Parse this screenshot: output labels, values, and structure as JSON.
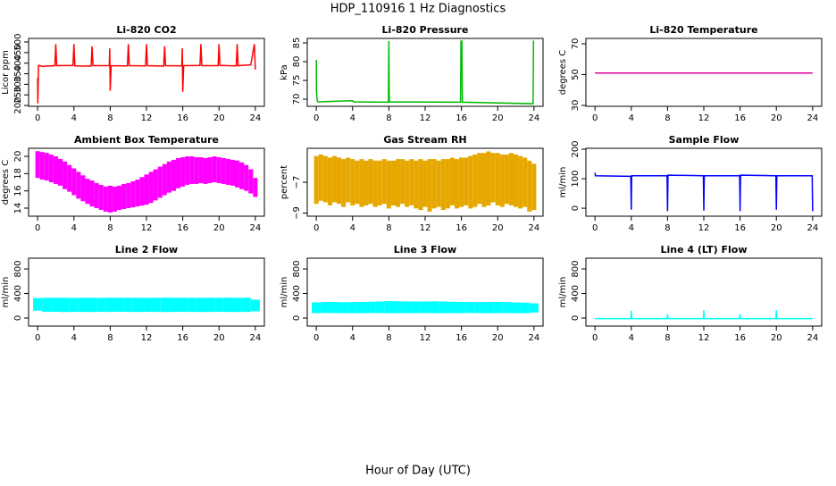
{
  "figure": {
    "title": "HDP_110916  1 Hz Diagnostics",
    "xlabel": "Hour of Day (UTC)"
  },
  "chart_data": [
    {
      "type": "line",
      "title": "Li-820 CO2",
      "ylabel": "Licor ppm",
      "x": [
        0,
        0.02,
        0.1,
        0.5,
        1.9,
        2,
        2.1,
        3.9,
        4,
        4.1,
        5.9,
        6,
        6.1,
        7.9,
        7.95,
        8,
        8.1,
        9.9,
        10,
        10.1,
        11.9,
        12,
        12.1,
        13.9,
        14,
        14.1,
        15.9,
        15.95,
        16,
        16.1,
        17.9,
        18,
        18.1,
        19.9,
        20,
        20.1,
        21.9,
        22,
        22.1,
        23.5,
        23.9,
        24
      ],
      "series": [
        {
          "color": "#ff0000",
          "values": [
            330,
            210,
            390,
            385,
            388,
            490,
            388,
            389,
            490,
            387,
            386,
            480,
            388,
            388,
            470,
            270,
            388,
            387,
            490,
            388,
            387,
            490,
            388,
            386,
            480,
            388,
            387,
            470,
            265,
            388,
            389,
            490,
            388,
            388,
            490,
            389,
            387,
            490,
            388,
            392,
            490,
            370
          ]
        }
      ],
      "xlim": [
        -1,
        25
      ],
      "xticks": [
        0,
        4,
        8,
        12,
        16,
        20,
        24
      ],
      "ylim": [
        196,
        517
      ],
      "yticks": [
        200,
        250,
        300,
        350,
        400,
        450,
        500
      ]
    },
    {
      "type": "line",
      "title": "Li-820 Pressure",
      "ylabel": "kPa",
      "x": [
        0,
        0.02,
        0.1,
        0.2,
        4,
        4.1,
        7.95,
        8,
        8.05,
        15.9,
        15.95,
        16,
        16.05,
        16.1,
        23.9,
        23.95,
        24
      ],
      "series": [
        {
          "color": "#00bb00",
          "values": [
            80.5,
            72,
            69.5,
            69.3,
            69.6,
            69.3,
            69.2,
            85.5,
            69.3,
            69.2,
            85.5,
            85.5,
            85.5,
            69.2,
            68.8,
            85.5,
            85.5
          ]
        }
      ],
      "xlim": [
        -1,
        25
      ],
      "xticks": [
        0,
        4,
        8,
        12,
        16,
        20,
        24
      ],
      "ylim": [
        68.1,
        86.2
      ],
      "yticks": [
        70,
        75,
        80,
        85
      ]
    },
    {
      "type": "line",
      "title": "Li-820 Temperature",
      "ylabel": "degrees C",
      "x": [
        0,
        24
      ],
      "series": [
        {
          "color": "#dd0099",
          "values": [
            51,
            51
          ]
        }
      ],
      "xlim": [
        -1,
        25
      ],
      "xticks": [
        0,
        4,
        8,
        12,
        16,
        20,
        24
      ],
      "ylim": [
        29.4,
        73.5
      ],
      "yticks": [
        30,
        50,
        70
      ]
    },
    {
      "type": "band",
      "title": "Ambient Box Temperature",
      "ylabel": "degrees C",
      "x": [
        0,
        0.5,
        1,
        1.5,
        2,
        2.5,
        3,
        3.5,
        4,
        4.5,
        5,
        5.5,
        6,
        6.5,
        7,
        7.5,
        8,
        8.5,
        9,
        9.5,
        10,
        10.5,
        11,
        11.5,
        12,
        12.5,
        13,
        13.5,
        14,
        14.5,
        15,
        15.5,
        16,
        16.5,
        17,
        17.5,
        18,
        18.5,
        19,
        19.5,
        20,
        20.5,
        21,
        21.5,
        22,
        22.5,
        23,
        23.5,
        24
      ],
      "series": [
        {
          "color": "#ff00ff",
          "upper": [
            20.6,
            20.5,
            20.4,
            20.2,
            20.0,
            19.7,
            19.4,
            19.0,
            18.6,
            18.2,
            17.8,
            17.4,
            17.2,
            16.9,
            16.7,
            16.5,
            16.6,
            16.5,
            16.6,
            16.8,
            16.9,
            17.1,
            17.3,
            17.6,
            17.9,
            18.2,
            18.5,
            18.8,
            19.1,
            19.4,
            19.6,
            19.8,
            19.9,
            20.0,
            20.0,
            19.9,
            19.9,
            19.8,
            19.9,
            20.0,
            19.9,
            19.8,
            19.7,
            19.6,
            19.5,
            19.3,
            19.0,
            18.5,
            17.5
          ],
          "lower": [
            17.5,
            17.3,
            17.2,
            17.0,
            16.8,
            16.6,
            16.2,
            15.9,
            15.5,
            15.1,
            14.8,
            14.5,
            14.2,
            14.0,
            13.8,
            13.6,
            13.5,
            13.6,
            13.8,
            13.9,
            14.0,
            14.1,
            14.2,
            14.3,
            14.4,
            14.6,
            14.9,
            15.2,
            15.5,
            15.8,
            16.0,
            16.3,
            16.5,
            16.7,
            16.8,
            16.8,
            16.9,
            16.8,
            16.9,
            17.0,
            16.9,
            16.8,
            16.7,
            16.6,
            16.4,
            16.2,
            16.0,
            15.7,
            15.3
          ]
        }
      ],
      "xlim": [
        -1,
        25
      ],
      "xticks": [
        0,
        4,
        8,
        12,
        16,
        20,
        24
      ],
      "ylim": [
        13.07,
        20.93
      ],
      "yticks": [
        14,
        16,
        18,
        20
      ]
    },
    {
      "type": "band",
      "title": "Gas Stream RH",
      "ylabel": "percent",
      "x": [
        0,
        0.5,
        1,
        1.5,
        2,
        2.5,
        3,
        3.5,
        4,
        4.5,
        5,
        5.5,
        6,
        6.5,
        7,
        7.5,
        8,
        8.5,
        9,
        9.5,
        10,
        10.5,
        11,
        11.5,
        12,
        12.5,
        13,
        13.5,
        14,
        14.5,
        15,
        15.5,
        16,
        16.5,
        17,
        17.5,
        18,
        18.5,
        19,
        19.5,
        20,
        20.5,
        21,
        21.5,
        22,
        22.5,
        23,
        23.5,
        24
      ],
      "series": [
        {
          "color": "#e6a800",
          "upper": [
            -5.3,
            -5.2,
            -5.3,
            -5.4,
            -5.3,
            -5.4,
            -5.5,
            -5.4,
            -5.5,
            -5.6,
            -5.5,
            -5.6,
            -5.5,
            -5.6,
            -5.6,
            -5.5,
            -5.6,
            -5.6,
            -5.5,
            -5.5,
            -5.6,
            -5.5,
            -5.6,
            -5.5,
            -5.6,
            -5.5,
            -5.5,
            -5.6,
            -5.5,
            -5.5,
            -5.4,
            -5.5,
            -5.4,
            -5.4,
            -5.3,
            -5.2,
            -5.1,
            -5.1,
            -5.0,
            -5.1,
            -5.1,
            -5.2,
            -5.2,
            -5.1,
            -5.2,
            -5.3,
            -5.4,
            -5.6,
            -5.8
          ],
          "lower": [
            -8.4,
            -8.2,
            -8.3,
            -8.5,
            -8.3,
            -8.4,
            -8.6,
            -8.3,
            -8.5,
            -8.4,
            -8.6,
            -8.5,
            -8.4,
            -8.6,
            -8.5,
            -8.4,
            -8.7,
            -8.5,
            -8.6,
            -8.4,
            -8.6,
            -8.5,
            -8.7,
            -8.8,
            -8.6,
            -8.9,
            -8.7,
            -8.6,
            -8.8,
            -8.7,
            -8.5,
            -8.7,
            -8.6,
            -8.5,
            -8.7,
            -8.6,
            -8.4,
            -8.6,
            -8.5,
            -8.3,
            -8.5,
            -8.6,
            -8.4,
            -8.5,
            -8.6,
            -8.7,
            -8.6,
            -8.9,
            -8.8
          ]
        }
      ],
      "xlim": [
        -1,
        25
      ],
      "xticks": [
        0,
        4,
        8,
        12,
        16,
        20,
        24
      ],
      "ylim": [
        -9.2,
        -4.8
      ],
      "yticks": [
        {
          "value": -9,
          "label": "−9"
        },
        {
          "value": -7,
          "label": "−7"
        }
      ]
    },
    {
      "type": "line",
      "title": "Sample Flow",
      "ylabel": "ml/min",
      "x": [
        0,
        0.05,
        3.95,
        4,
        4.05,
        7.95,
        8,
        8.05,
        11.95,
        12,
        12.05,
        15.95,
        16,
        16.05,
        19.95,
        20,
        20.05,
        23.95,
        24
      ],
      "series": [
        {
          "color": "#0000ff",
          "values": [
            120,
            110,
            108,
            -5,
            110,
            110,
            -10,
            112,
            110,
            -8,
            110,
            110,
            -10,
            112,
            110,
            -5,
            110,
            110,
            -10
          ]
        }
      ],
      "xlim": [
        -1,
        25
      ],
      "xticks": [
        0,
        4,
        8,
        12,
        16,
        20,
        24
      ],
      "ylim": [
        -27,
        203
      ],
      "yticks": [
        0,
        100,
        200
      ]
    },
    {
      "type": "band",
      "title": "Line 2 Flow",
      "ylabel": "ml/min",
      "x": [
        0,
        1,
        2,
        3,
        4,
        5,
        6,
        7,
        8,
        9,
        10,
        11,
        12,
        13,
        14,
        15,
        16,
        17,
        18,
        19,
        20,
        21,
        22,
        23,
        24
      ],
      "series": [
        {
          "color": "#00ffff",
          "upper": [
            325,
            330,
            332,
            330,
            328,
            331,
            330,
            329,
            332,
            330,
            331,
            330,
            329,
            330,
            332,
            331,
            330,
            330,
            329,
            331,
            330,
            332,
            330,
            331,
            300
          ],
          "lower": [
            120,
            100,
            102,
            98,
            101,
            100,
            99,
            101,
            100,
            102,
            100,
            99,
            101,
            100,
            98,
            100,
            101,
            100,
            99,
            100,
            101,
            100,
            99,
            100,
            110
          ]
        }
      ],
      "xlim": [
        -1,
        25
      ],
      "xticks": [
        0,
        4,
        8,
        12,
        16,
        20,
        24
      ],
      "ylim": [
        -131,
        975
      ],
      "yticks": [
        0,
        400,
        800
      ]
    },
    {
      "type": "band",
      "title": "Line 3 Flow",
      "ylabel": "ml/min",
      "x": [
        0,
        1,
        2,
        3,
        4,
        5,
        6,
        7,
        8,
        9,
        10,
        11,
        12,
        13,
        14,
        15,
        16,
        17,
        18,
        19,
        20,
        21,
        22,
        23,
        24
      ],
      "series": [
        {
          "color": "#00ffff",
          "upper": [
            255,
            260,
            262,
            258,
            260,
            262,
            265,
            270,
            275,
            272,
            270,
            268,
            270,
            272,
            268,
            265,
            262,
            260,
            258,
            260,
            262,
            258,
            255,
            250,
            240
          ],
          "lower": [
            80,
            82,
            80,
            81,
            79,
            80,
            82,
            81,
            80,
            79,
            81,
            80,
            82,
            80,
            79,
            81,
            80,
            82,
            80,
            79,
            80,
            81,
            80,
            79,
            90
          ]
        }
      ],
      "xlim": [
        -1,
        25
      ],
      "xticks": [
        0,
        4,
        8,
        12,
        16,
        20,
        24
      ],
      "ylim": [
        -131,
        975
      ],
      "yticks": [
        0,
        400,
        800
      ]
    },
    {
      "type": "line",
      "title": "Line 4 (LT) Flow",
      "ylabel": "ml/min",
      "x": [
        0,
        3.95,
        4,
        4.05,
        7.95,
        8,
        8.05,
        11.95,
        12,
        12.05,
        15.95,
        16,
        16.05,
        19.95,
        20,
        20.05,
        24
      ],
      "series": [
        {
          "color": "#00ffff",
          "values": [
            -10,
            -10,
            120,
            -10,
            -10,
            60,
            -10,
            -10,
            130,
            -10,
            -10,
            60,
            -10,
            -10,
            130,
            -10,
            -10
          ]
        }
      ],
      "xlim": [
        -1,
        25
      ],
      "xticks": [
        0,
        4,
        8,
        12,
        16,
        20,
        24
      ],
      "ylim": [
        -131,
        975
      ],
      "yticks": [
        0,
        400,
        800
      ]
    }
  ]
}
